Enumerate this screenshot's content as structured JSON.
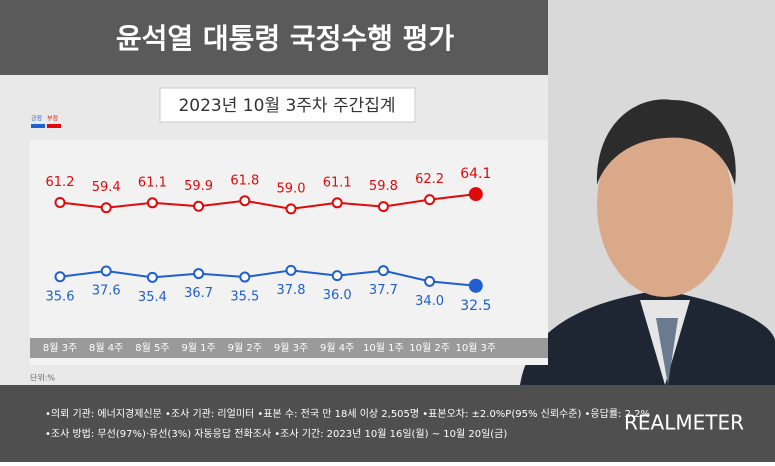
{
  "chart_data": {
    "type": "line",
    "title": "윤석열 대통령 국정수행 평가",
    "subtitle": "2023년 10월 3주차 주간집계",
    "categories": [
      "8월 3주",
      "8월 4주",
      "8월 5주",
      "9월 1주",
      "9월 2주",
      "9월 3주",
      "9월 4주",
      "10월 1주",
      "10월 2주",
      "10월 3주"
    ],
    "series": [
      {
        "name": "긍정",
        "color": "#1f5fd0",
        "values": [
          35.6,
          37.6,
          35.4,
          36.7,
          35.5,
          37.8,
          36.0,
          37.7,
          34.0,
          32.5
        ],
        "value_labels": [
          "35.6",
          "37.6",
          "35.4",
          "36.7",
          "35.5",
          "37.8",
          "36.0",
          "37.7",
          "34.0",
          "32.5"
        ]
      },
      {
        "name": "부정",
        "color": "#e00a0a",
        "values": [
          61.2,
          59.4,
          61.1,
          59.9,
          61.8,
          59.0,
          61.1,
          59.8,
          62.2,
          64.1
        ],
        "value_labels": [
          "61.2",
          "59.4",
          "61.1",
          "59.9",
          "61.8",
          "59.0",
          "61.1",
          "59.8",
          "62.2",
          "64.1"
        ]
      }
    ],
    "unit_note": "단위:%"
  },
  "footer": {
    "notes": [
      "•의뢰 기관: 에너지경제신문 •조사 기관: 리얼미터 •표본 수: 전국 만 18세 이상 2,505명 •표본오차: ±2.0%P(95% 신뢰수준) •응답률: 2.2%",
      "•조사 방법: 무선(97%)·유선(3%) 자동응답 전화조사 •조사 기간: 2023년 10월 16일(월) ~ 10월 20일(금)"
    ],
    "brand": "REALMETER"
  }
}
